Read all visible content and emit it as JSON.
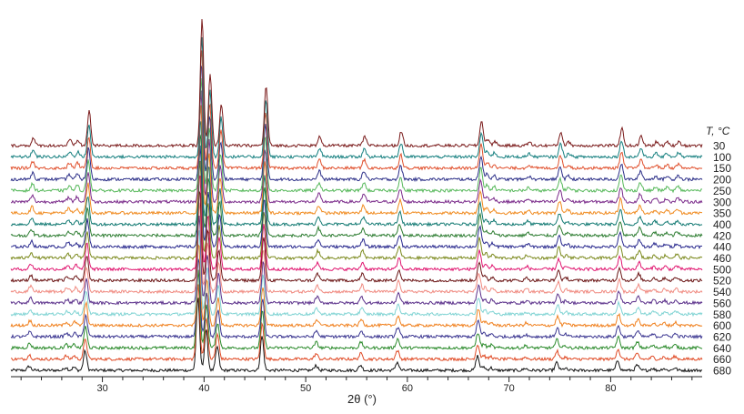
{
  "chart_data": {
    "type": "line",
    "title": "",
    "xlabel": "2θ (°)",
    "ylabel": "",
    "legend_title": "T, °C",
    "xlim": [
      21,
      89
    ],
    "xticks": [
      30,
      40,
      50,
      60,
      70,
      80
    ],
    "grid": false,
    "legend_placement": "right",
    "peaks": [
      {
        "x": 23.2,
        "h": 8
      },
      {
        "x": 26.8,
        "h": 6
      },
      {
        "x": 27.6,
        "h": 6
      },
      {
        "x": 28.7,
        "h": 38
      },
      {
        "x": 39.8,
        "h": 140
      },
      {
        "x": 40.6,
        "h": 78
      },
      {
        "x": 41.7,
        "h": 46
      },
      {
        "x": 46.1,
        "h": 66
      },
      {
        "x": 51.4,
        "h": 10
      },
      {
        "x": 55.8,
        "h": 10
      },
      {
        "x": 59.4,
        "h": 16
      },
      {
        "x": 67.3,
        "h": 28
      },
      {
        "x": 67.9,
        "h": 7
      },
      {
        "x": 68.6,
        "h": 5
      },
      {
        "x": 72.0,
        "h": 4
      },
      {
        "x": 75.1,
        "h": 15
      },
      {
        "x": 75.9,
        "h": 4
      },
      {
        "x": 81.1,
        "h": 19
      },
      {
        "x": 83.0,
        "h": 10
      },
      {
        "x": 84.5,
        "h": 4
      },
      {
        "x": 85.6,
        "h": 4
      },
      {
        "x": 86.7,
        "h": 5
      }
    ],
    "series": [
      {
        "name": "30",
        "color": "#7a1a1a"
      },
      {
        "name": "100",
        "color": "#157f7f"
      },
      {
        "name": "150",
        "color": "#e0502d"
      },
      {
        "name": "200",
        "color": "#2c2f88"
      },
      {
        "name": "250",
        "color": "#56b85a"
      },
      {
        "name": "300",
        "color": "#7a2a8a"
      },
      {
        "name": "350",
        "color": "#f08a1e"
      },
      {
        "name": "400",
        "color": "#137a73"
      },
      {
        "name": "420",
        "color": "#2e7d32"
      },
      {
        "name": "440",
        "color": "#2a2a8e"
      },
      {
        "name": "460",
        "color": "#7c8a1e"
      },
      {
        "name": "500",
        "color": "#e0156f"
      },
      {
        "name": "520",
        "color": "#6b1515"
      },
      {
        "name": "540",
        "color": "#f08a80"
      },
      {
        "name": "560",
        "color": "#5a2f8a"
      },
      {
        "name": "580",
        "color": "#7fd3d3"
      },
      {
        "name": "600",
        "color": "#f0801e"
      },
      {
        "name": "620",
        "color": "#3a3590"
      },
      {
        "name": "640",
        "color": "#2a8a2a"
      },
      {
        "name": "660",
        "color": "#e04a25"
      },
      {
        "name": "680",
        "color": "#111111"
      }
    ]
  }
}
